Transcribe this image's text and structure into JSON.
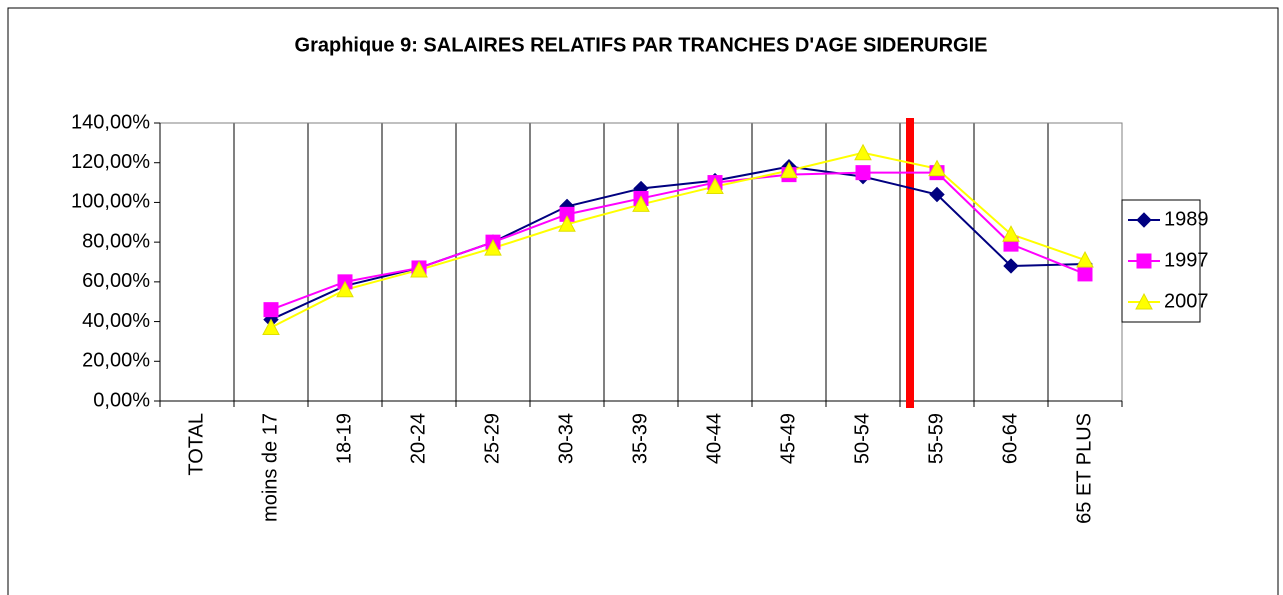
{
  "chart_data": {
    "type": "line",
    "title": "Graphique 9: SALAIRES RELATIFS PAR TRANCHES D'AGE SIDERURGIE",
    "categories": [
      "TOTAL",
      "moins de 17",
      "18-19",
      "20-24",
      "25-29",
      "30-34",
      "35-39",
      "40-44",
      "45-49",
      "50-54",
      "55-59",
      "60-64",
      "65 ET PLUS"
    ],
    "series": [
      {
        "name": "1989",
        "color": "#000080",
        "marker": "diamond",
        "values": [
          null,
          41,
          58,
          67,
          80,
          98,
          107,
          111,
          118,
          113,
          104,
          68,
          69
        ]
      },
      {
        "name": "1997",
        "color": "#ff00ff",
        "marker": "square",
        "values": [
          null,
          46,
          60,
          67,
          80,
          94,
          102,
          110,
          114,
          115,
          115,
          79,
          64
        ]
      },
      {
        "name": "2007",
        "color": "#ffff00",
        "marker": "triangle",
        "values": [
          null,
          37,
          56,
          66,
          77,
          89,
          99,
          108,
          116,
          125,
          117,
          84,
          71
        ]
      }
    ],
    "ylim": [
      0,
      140
    ],
    "yticks": [
      {
        "value": 0,
        "label": "0,00%"
      },
      {
        "value": 20,
        "label": "20,00%"
      },
      {
        "value": 40,
        "label": "40,00%"
      },
      {
        "value": 60,
        "label": "60,00%"
      },
      {
        "value": 80,
        "label": "80,00%"
      },
      {
        "value": 100,
        "label": "100,00%"
      },
      {
        "value": 120,
        "label": "120,00%"
      },
      {
        "value": 140,
        "label": "140,00%"
      }
    ],
    "grid": "x",
    "legend": "right"
  }
}
